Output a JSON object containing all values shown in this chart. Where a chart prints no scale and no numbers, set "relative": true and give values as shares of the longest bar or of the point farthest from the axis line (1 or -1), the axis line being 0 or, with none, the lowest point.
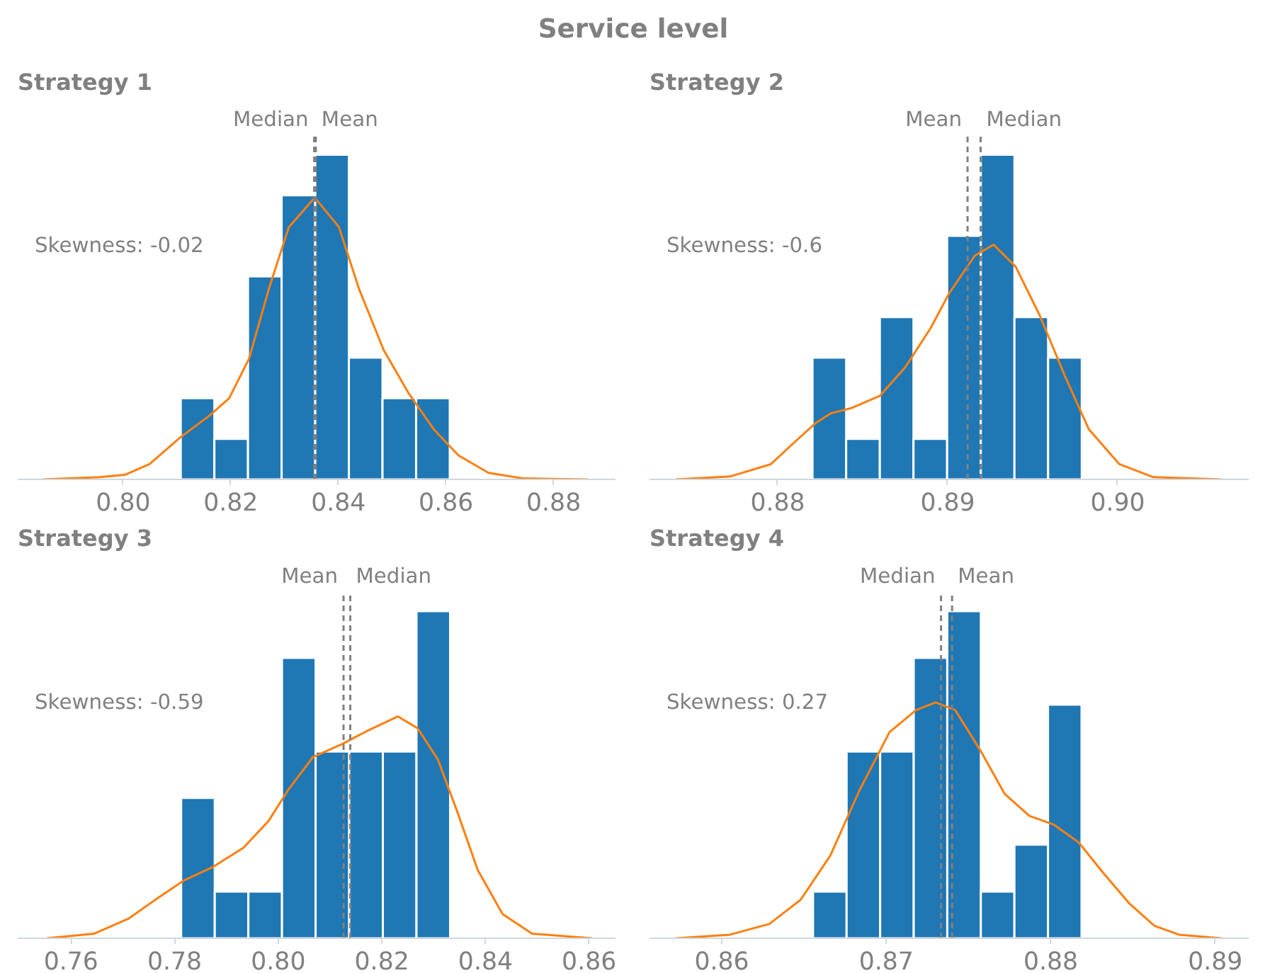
{
  "chart_data": [
    {
      "type": "histogram",
      "title": "Service level",
      "subtitle": "Strategy 1",
      "relative": true,
      "xlim": [
        0.7804,
        0.8915
      ],
      "xticks": [
        {
          "value": 0.8,
          "label": "0.80"
        },
        {
          "value": 0.82,
          "label": "0.82"
        },
        {
          "value": 0.84,
          "label": "0.84"
        },
        {
          "value": 0.86,
          "label": "0.86"
        },
        {
          "value": 0.88,
          "label": "0.88"
        }
      ],
      "series": [
        {
          "color": "#1f77b4",
          "bins": [
            0.8107,
            0.81695,
            0.8232,
            0.82945,
            0.8357,
            0.84195,
            0.8482,
            0.85445,
            0.8607
          ],
          "values": [
            0.25,
            0.125,
            0.625,
            0.875,
            1.0,
            0.375,
            0.25,
            0.25
          ]
        },
        {
          "type": "line",
          "color": "#ff7f0e",
          "x": [
            0.785,
            0.7957,
            0.8003,
            0.8049,
            0.8105,
            0.816,
            0.8197,
            0.8234,
            0.8271,
            0.8308,
            0.8356,
            0.8401,
            0.8438,
            0.8484,
            0.8531,
            0.8577,
            0.8623,
            0.8679,
            0.8744,
            0.8864
          ],
          "values": [
            0,
            0.007,
            0.014,
            0.047,
            0.128,
            0.196,
            0.25,
            0.372,
            0.588,
            0.777,
            0.868,
            0.777,
            0.588,
            0.399,
            0.264,
            0.155,
            0.074,
            0.02,
            0.003,
            0
          ]
        }
      ],
      "ref_lines": [
        {
          "axis": "x",
          "value": 0.8355,
          "label": "Median",
          "color": "#808080",
          "line_style": "dashed"
        },
        {
          "axis": "x",
          "value": 0.8358,
          "label": "Mean",
          "color": "#808080",
          "line_style": "dashed"
        }
      ],
      "annotations": [
        "Skewness: -0.02"
      ]
    },
    {
      "type": "histogram",
      "title": "Strategy 2",
      "relative": true,
      "xlim": [
        0.87246,
        0.90771
      ],
      "xticks": [
        {
          "value": 0.88,
          "label": "0.88"
        },
        {
          "value": 0.89,
          "label": "0.89"
        },
        {
          "value": 0.9,
          "label": "0.90"
        }
      ],
      "series": [
        {
          "color": "#1f77b4",
          "bins": [
            0.88205,
            0.88403,
            0.88601,
            0.88799,
            0.88997,
            0.89195,
            0.89393,
            0.89591,
            0.89789
          ],
          "values": [
            0.375,
            0.125,
            0.5,
            0.125,
            0.75,
            1.0,
            0.5,
            0.375
          ]
        },
        {
          "type": "line",
          "color": "#ff7f0e",
          "x": [
            0.874,
            0.8772,
            0.8796,
            0.881,
            0.8822,
            0.8831,
            0.8843,
            0.886,
            0.8875,
            0.889,
            0.8901,
            0.8916,
            0.8927,
            0.894,
            0.8954,
            0.8969,
            0.8983,
            0.9001,
            0.9021,
            0.9061
          ],
          "values": [
            0,
            0.009,
            0.047,
            0.115,
            0.172,
            0.203,
            0.219,
            0.257,
            0.345,
            0.466,
            0.574,
            0.689,
            0.723,
            0.655,
            0.507,
            0.318,
            0.155,
            0.047,
            0.007,
            0
          ]
        }
      ],
      "ref_lines": [
        {
          "axis": "x",
          "value": 0.89117,
          "label": "Mean",
          "color": "#808080",
          "line_style": "dashed"
        },
        {
          "axis": "x",
          "value": 0.89194,
          "label": "Median",
          "color": "#808080",
          "line_style": "dashed"
        }
      ],
      "annotations": [
        "Skewness: -0.6"
      ]
    },
    {
      "type": "histogram",
      "title": "Strategy 3",
      "relative": true,
      "xlim": [
        0.7497,
        0.8651
      ],
      "xticks": [
        {
          "value": 0.76,
          "label": "0.76"
        },
        {
          "value": 0.78,
          "label": "0.78"
        },
        {
          "value": 0.8,
          "label": "0.80"
        },
        {
          "value": 0.82,
          "label": "0.82"
        },
        {
          "value": 0.84,
          "label": "0.84"
        },
        {
          "value": 0.86,
          "label": "0.86"
        }
      ],
      "series": [
        {
          "color": "#1f77b4",
          "bins": [
            0.78125,
            0.78774,
            0.79423,
            0.80072,
            0.80721,
            0.8137,
            0.82019,
            0.82668,
            0.83317
          ],
          "values": [
            0.429,
            0.143,
            0.143,
            0.857,
            0.571,
            0.571,
            0.571,
            1.0
          ]
        },
        {
          "type": "line",
          "color": "#ff7f0e",
          "x": [
            0.7553,
            0.7644,
            0.7712,
            0.776,
            0.7817,
            0.7875,
            0.7933,
            0.7981,
            0.8019,
            0.8067,
            0.8125,
            0.8173,
            0.8231,
            0.8269,
            0.8308,
            0.8346,
            0.8385,
            0.8433,
            0.849,
            0.8606
          ],
          "values": [
            0,
            0.014,
            0.061,
            0.115,
            0.176,
            0.219,
            0.277,
            0.358,
            0.453,
            0.554,
            0.595,
            0.635,
            0.678,
            0.642,
            0.547,
            0.385,
            0.209,
            0.074,
            0.014,
            0
          ]
        }
      ],
      "ref_lines": [
        {
          "axis": "x",
          "value": 0.8126,
          "label": "Mean",
          "color": "#808080",
          "line_style": "dashed"
        },
        {
          "axis": "x",
          "value": 0.8139,
          "label": "Median",
          "color": "#808080",
          "line_style": "dashed"
        }
      ],
      "annotations": [
        "Skewness: -0.59"
      ]
    },
    {
      "type": "histogram",
      "title": "Strategy 4",
      "relative": true,
      "xlim": [
        0.85561,
        0.89203
      ],
      "xticks": [
        {
          "value": 0.86,
          "label": "0.86"
        },
        {
          "value": 0.87,
          "label": "0.87"
        },
        {
          "value": 0.88,
          "label": "0.88"
        },
        {
          "value": 0.89,
          "label": "0.89"
        }
      ],
      "series": [
        {
          "color": "#1f77b4",
          "bins": [
            0.86555,
            0.86759,
            0.86963,
            0.87167,
            0.87371,
            0.87575,
            0.87779,
            0.87983,
            0.88187
          ],
          "values": [
            0.143,
            0.571,
            0.571,
            0.857,
            1.0,
            0.143,
            0.286,
            0.714
          ]
        },
        {
          "type": "line",
          "color": "#ff7f0e",
          "x": [
            0.8572,
            0.8605,
            0.8629,
            0.8648,
            0.8666,
            0.8684,
            0.8702,
            0.8718,
            0.873,
            0.8742,
            0.8757,
            0.8772,
            0.8787,
            0.8802,
            0.8817,
            0.8832,
            0.8848,
            0.8863,
            0.8878,
            0.8904
          ],
          "values": [
            0,
            0.011,
            0.044,
            0.118,
            0.253,
            0.455,
            0.63,
            0.697,
            0.721,
            0.697,
            0.576,
            0.441,
            0.374,
            0.347,
            0.293,
            0.199,
            0.105,
            0.038,
            0.011,
            0
          ]
        }
      ],
      "ref_lines": [
        {
          "axis": "x",
          "value": 0.87333,
          "label": "Median",
          "color": "#808080",
          "line_style": "dashed"
        },
        {
          "axis": "x",
          "value": 0.874,
          "label": "Mean",
          "color": "#808080",
          "line_style": "dashed"
        }
      ],
      "annotations": [
        "Skewness: 0.27"
      ]
    }
  ]
}
